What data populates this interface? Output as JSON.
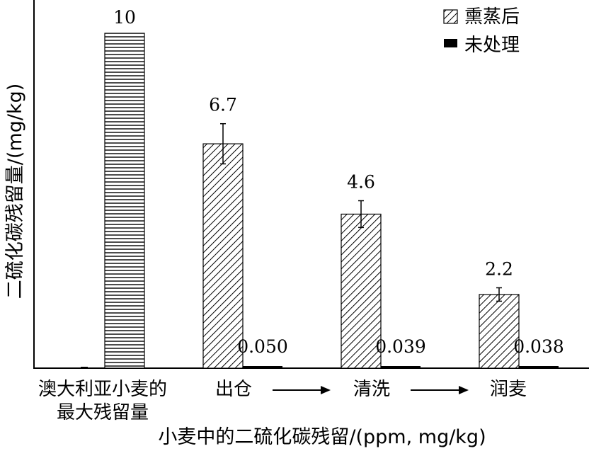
{
  "chart_data": {
    "type": "bar",
    "title": "",
    "xlabel": "小麦中的二硫化碳残留/(ppm, mg/kg)",
    "ylabel": "二硫化碳残留量/(mg/kg)",
    "ylim": [
      0,
      10
    ],
    "grid": false,
    "legend_position": "top-right",
    "categories": [
      {
        "line1": "澳大利亚小麦的",
        "line2": "最大残留量"
      },
      {
        "line1": "出仓",
        "line2": ""
      },
      {
        "line1": "清洗",
        "line2": ""
      },
      {
        "line1": "润麦",
        "line2": ""
      }
    ],
    "arrows": [
      "→",
      "→"
    ],
    "reference": {
      "category_index": 0,
      "value": 10,
      "label": "10"
    },
    "series": [
      {
        "name": "熏蒸后",
        "pattern": "diagonal-hatch",
        "values": [
          null,
          6.7,
          4.6,
          2.2
        ],
        "labels": [
          "",
          "6.7",
          "4.6",
          "2.2"
        ],
        "error": [
          null,
          0.6,
          0.4,
          0.2
        ]
      },
      {
        "name": "未处理",
        "pattern": "solid",
        "color": "#000000",
        "values": [
          0,
          0.05,
          0.039,
          0.038
        ],
        "labels": [
          "",
          "0.050",
          "0.039",
          "0.038"
        ]
      }
    ]
  }
}
